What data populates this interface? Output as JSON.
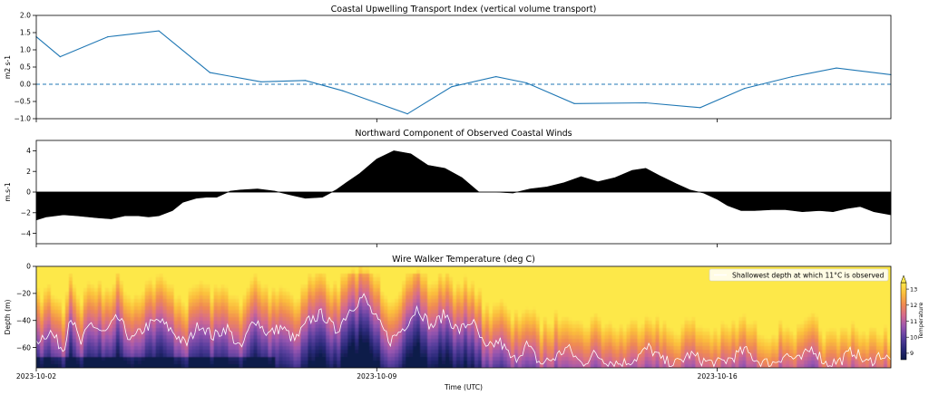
{
  "chart_data": [
    {
      "type": "line",
      "title": "Coastal Upwelling Transport Index (vertical volume transport)",
      "ylabel": "m2 s-1",
      "xlabel": "",
      "ylim": [
        -1.0,
        2.0
      ],
      "yticks": [
        "2.0",
        "1.5",
        "1.0",
        "0.5",
        "0.0",
        "−0.5",
        "−1.0"
      ],
      "x_range_days": [
        0,
        25.1
      ],
      "series": [
        {
          "color": "#1f77b4",
          "x": [
            0,
            0.7,
            2.1,
            3.6,
            5.1,
            6.6,
            7.9,
            9.0,
            10.9,
            12.2,
            13.5,
            14.4,
            15.8,
            17.9,
            19.5,
            20.8,
            22.2,
            23.5,
            25.1
          ],
          "y": [
            1.38,
            0.8,
            1.38,
            1.55,
            0.34,
            0.07,
            0.11,
            -0.19,
            -0.86,
            -0.07,
            0.22,
            0.04,
            -0.56,
            -0.54,
            -0.68,
            -0.12,
            0.22,
            0.47,
            0.28
          ]
        }
      ],
      "reference_line": {
        "y": 0.0,
        "style": "dashed",
        "color": "#1f77b4"
      }
    },
    {
      "type": "area",
      "title": "Northward Component of Observed Coastal Winds",
      "ylabel": "m.s-1",
      "xlabel": "",
      "ylim": [
        -5,
        5
      ],
      "yticks": [
        "4",
        "2",
        "0",
        "−2",
        "−4"
      ],
      "fill_color": "#000000",
      "x": [
        0,
        0.3,
        0.8,
        1.2,
        1.8,
        2.2,
        2.6,
        3.0,
        3.3,
        3.6,
        4.0,
        4.3,
        4.7,
        5.0,
        5.3,
        5.7,
        6.0,
        6.5,
        7.0,
        7.5,
        7.9,
        8.4,
        8.8,
        9.1,
        9.5,
        10.0,
        10.5,
        11.0,
        11.5,
        12.0,
        12.5,
        13.0,
        13.5,
        14.0,
        14.5,
        15.0,
        15.5,
        16.0,
        16.5,
        17.0,
        17.5,
        17.9,
        18.3,
        18.8,
        19.2,
        19.6,
        20.0,
        20.3,
        20.7,
        21.1,
        21.6,
        22.0,
        22.5,
        23.0,
        23.4,
        23.8,
        24.2,
        24.6,
        25.1
      ],
      "y": [
        -2.7,
        -2.4,
        -2.2,
        -2.3,
        -2.5,
        -2.6,
        -2.3,
        -2.3,
        -2.4,
        -2.3,
        -1.8,
        -1.0,
        -0.6,
        -0.5,
        -0.5,
        0.1,
        0.2,
        0.3,
        0.1,
        -0.3,
        -0.6,
        -0.5,
        0.2,
        0.9,
        1.8,
        3.2,
        4.0,
        3.7,
        2.6,
        2.3,
        1.4,
        0.0,
        0.0,
        -0.1,
        0.3,
        0.5,
        0.9,
        1.5,
        1.0,
        1.4,
        2.1,
        2.3,
        1.6,
        0.8,
        0.2,
        -0.1,
        -0.7,
        -1.3,
        -1.8,
        -1.8,
        -1.7,
        -1.7,
        -1.9,
        -1.8,
        -1.9,
        -1.6,
        -1.4,
        -1.9,
        -2.2
      ]
    },
    {
      "type": "heatmap",
      "title": "Wire Walker Temperature (deg C)",
      "ylabel": "Depth (m)",
      "xlabel": "Time (UTC)",
      "ylim": [
        -75,
        0
      ],
      "yticks": [
        "0",
        "−20",
        "−40",
        "−60"
      ],
      "xticks": [
        "2023-10-02",
        "2023-10-09",
        "2023-10-16"
      ],
      "colorbar": {
        "label": "Temperature",
        "range": [
          8.6,
          13.4
        ],
        "ticks": [
          "13",
          "12",
          "11",
          "10",
          "9"
        ],
        "colormap": [
          "#0d1b4a",
          "#2b2a7a",
          "#5a3f9e",
          "#9a56b0",
          "#d56a8e",
          "#f08a52",
          "#fbbd3c",
          "#fde84a"
        ]
      },
      "legend": {
        "entry": "Shallowest depth at which 11°C is observed",
        "color": "#ffffff",
        "placement": "top-right"
      },
      "isotherm_11C_depth": {
        "x": [
          0,
          0.4,
          0.8,
          1.0,
          1.3,
          1.6,
          2.0,
          2.4,
          2.8,
          3.2,
          3.6,
          4.0,
          4.4,
          4.8,
          5.2,
          5.6,
          6.0,
          6.4,
          6.8,
          7.2,
          7.6,
          8.0,
          8.4,
          8.8,
          9.2,
          9.6,
          10.0,
          10.4,
          10.8,
          11.2,
          11.6,
          12.0,
          12.4,
          12.8,
          13.2,
          13.6,
          14.0,
          14.4,
          14.8,
          15.2,
          15.6,
          16.0,
          16.4,
          16.8,
          17.2,
          17.6,
          18.0,
          18.4,
          18.8,
          19.2,
          19.6,
          20.0,
          20.4,
          20.8,
          21.2,
          21.6,
          22.0,
          22.4,
          22.8,
          23.2,
          23.6,
          24.0,
          24.4,
          24.8,
          25.1
        ],
        "y": [
          -55,
          -48,
          -62,
          -35,
          -58,
          -42,
          -50,
          -38,
          -55,
          -45,
          -40,
          -48,
          -58,
          -42,
          -52,
          -45,
          -62,
          -38,
          -50,
          -45,
          -55,
          -40,
          -35,
          -48,
          -32,
          -22,
          -40,
          -55,
          -45,
          -30,
          -45,
          -35,
          -48,
          -40,
          -62,
          -55,
          -70,
          -58,
          -72,
          -68,
          -60,
          -72,
          -65,
          -70,
          -72,
          -68,
          -60,
          -70,
          -72,
          -65,
          -70,
          -72,
          -68,
          -62,
          -70,
          -72,
          -65,
          -70,
          -60,
          -72,
          -70,
          -62,
          -72,
          -65,
          -70
        ]
      }
    }
  ]
}
